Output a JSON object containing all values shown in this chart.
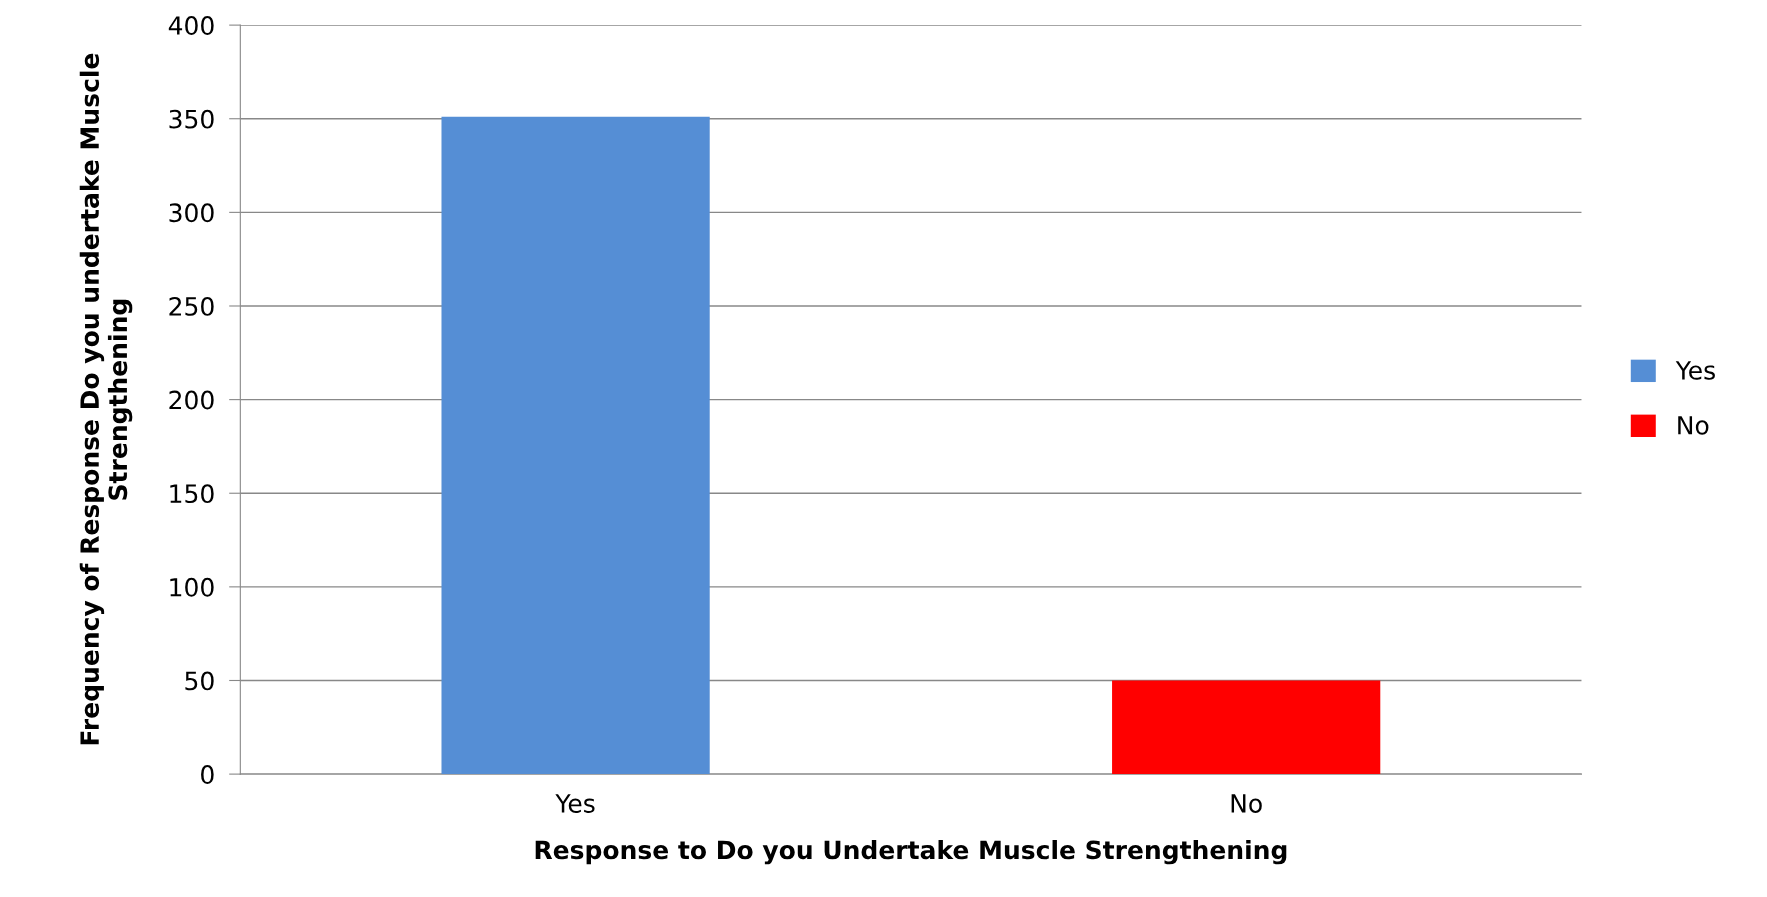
{
  "chart_data": {
    "type": "bar",
    "xlabel": "Response to Do you Undertake Muscle Strengthening",
    "ylabel": "Frequency of Response Do you undertake Muscle Strengthening",
    "categories": [
      "Yes",
      "No"
    ],
    "series": [
      {
        "name": "Yes",
        "color": "#558ed5",
        "values": [
          351,
          null
        ]
      },
      {
        "name": "No",
        "color": "#ff0000",
        "values": [
          null,
          50
        ]
      }
    ],
    "ylim": [
      0,
      400
    ],
    "yticks": [
      0,
      50,
      100,
      150,
      200,
      250,
      300,
      350,
      400
    ],
    "grid": "y",
    "legend": "right"
  }
}
